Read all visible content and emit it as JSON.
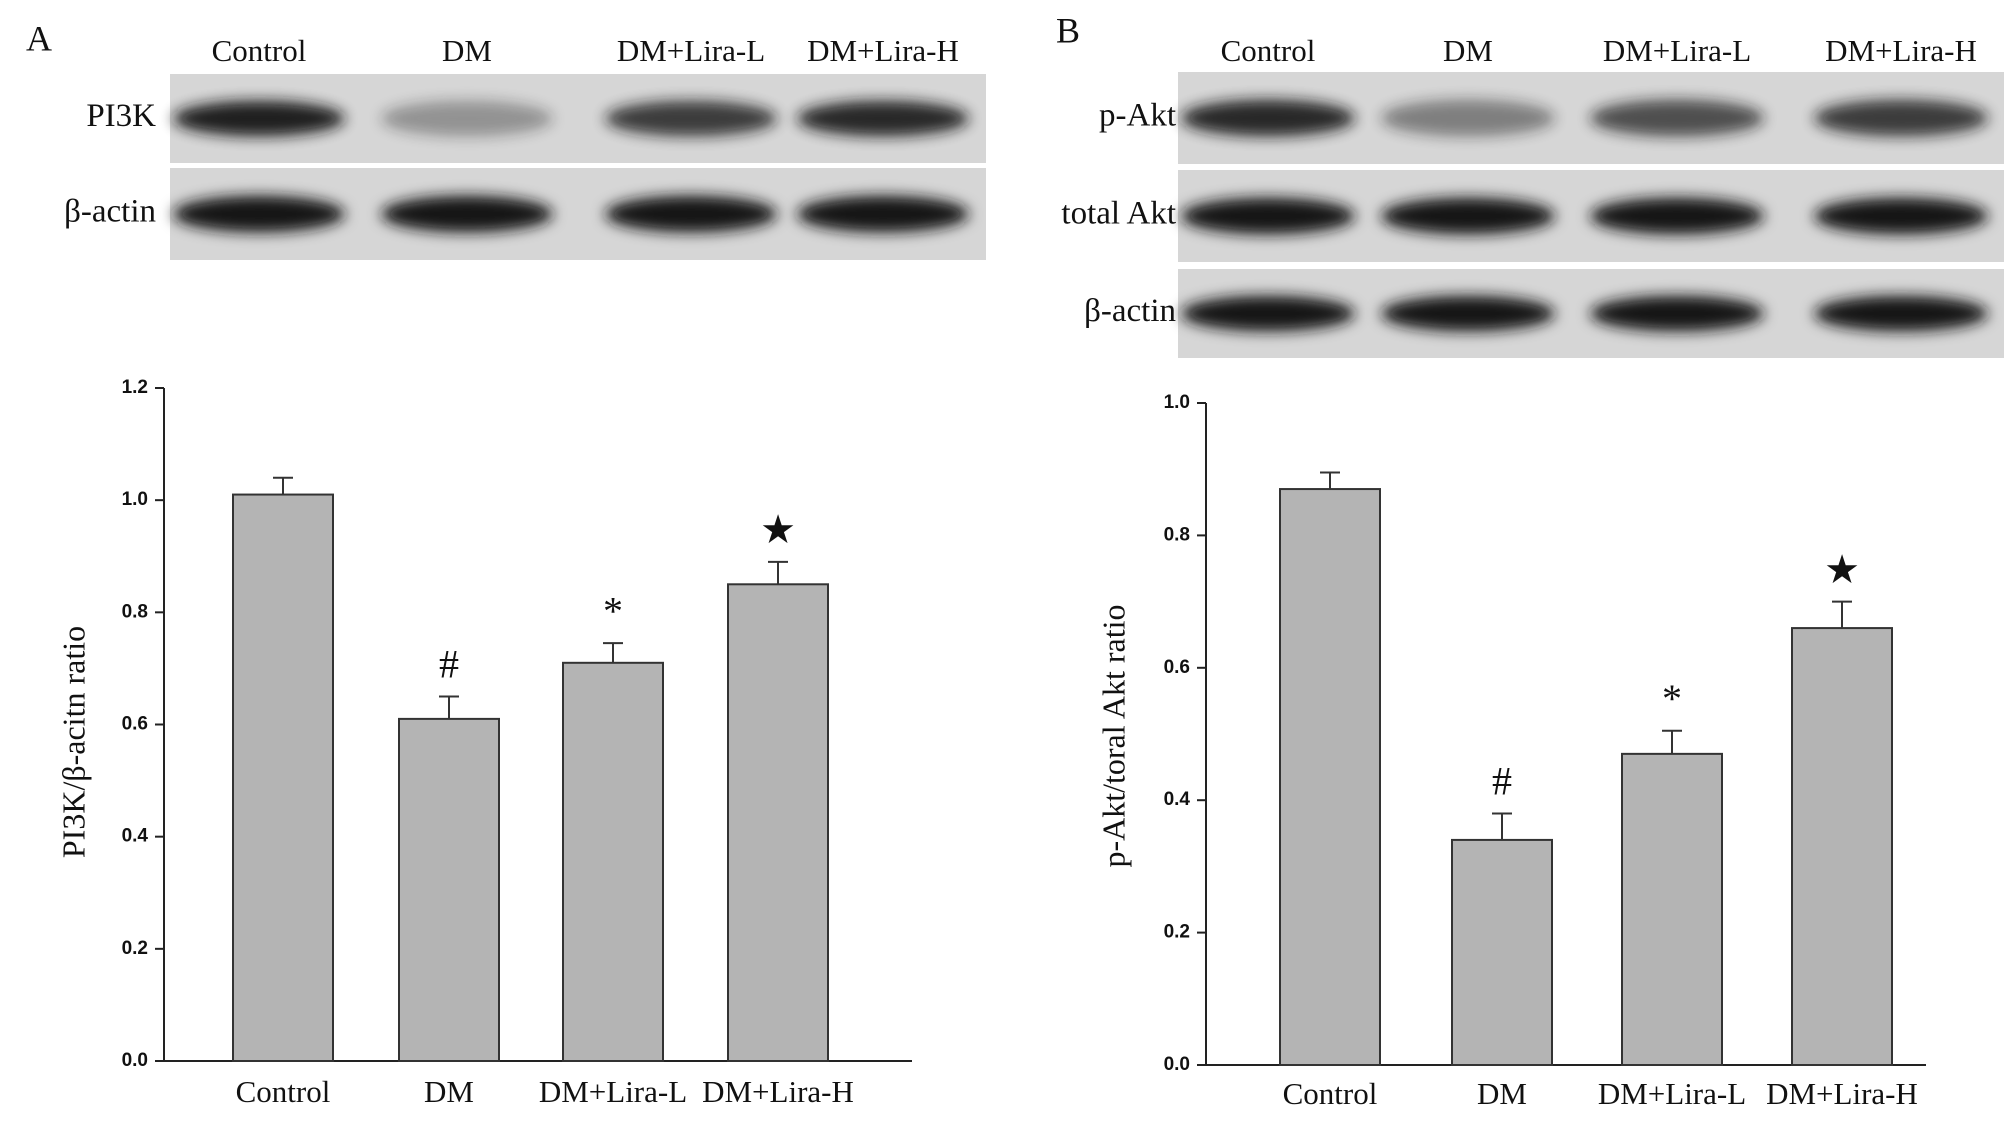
{
  "chart_data": [
    {
      "type": "bar",
      "panel_label": "A",
      "blot_lanes": [
        "Control",
        "DM",
        "DM+Lira-L",
        "DM+Lira-H"
      ],
      "blot_rows": [
        "PI3K",
        "β-actin"
      ],
      "y_label": "PI3K/β-acitn ratio",
      "categories": [
        "Control",
        "DM",
        "DM+Lira-L",
        "DM+Lira-H"
      ],
      "values": [
        1.01,
        0.61,
        0.71,
        0.85
      ],
      "errors": [
        0.03,
        0.04,
        0.035,
        0.04
      ],
      "annotations": [
        null,
        "#",
        "*",
        "★"
      ],
      "color": "#b4b4b4",
      "ylim": [
        0,
        1.2
      ],
      "yticks": [
        {
          "value": 0,
          "label": "0.0"
        },
        0.2,
        0.4,
        0.6,
        0.8,
        {
          "value": 1,
          "label": "1.0"
        },
        1.2
      ]
    },
    {
      "type": "bar",
      "panel_label": "B",
      "blot_lanes": [
        "Control",
        "DM",
        "DM+Lira-L",
        "DM+Lira-H"
      ],
      "blot_rows": [
        "p-Akt",
        "total Akt",
        "β-actin"
      ],
      "y_label": "p-Akt/toral Akt ratio",
      "categories": [
        "Control",
        "DM",
        "DM+Lira-L",
        "DM+Lira-H"
      ],
      "values": [
        0.87,
        0.34,
        0.47,
        0.66
      ],
      "errors": [
        0.025,
        0.04,
        0.035,
        0.04
      ],
      "annotations": [
        null,
        "#",
        "*",
        "★"
      ],
      "color": "#b4b4b4",
      "ylim": [
        0,
        1
      ],
      "yticks": [
        {
          "value": 0,
          "label": "0.0"
        },
        0.2,
        0.4,
        0.6,
        0.8,
        {
          "value": 1,
          "label": "1.0"
        }
      ]
    }
  ]
}
